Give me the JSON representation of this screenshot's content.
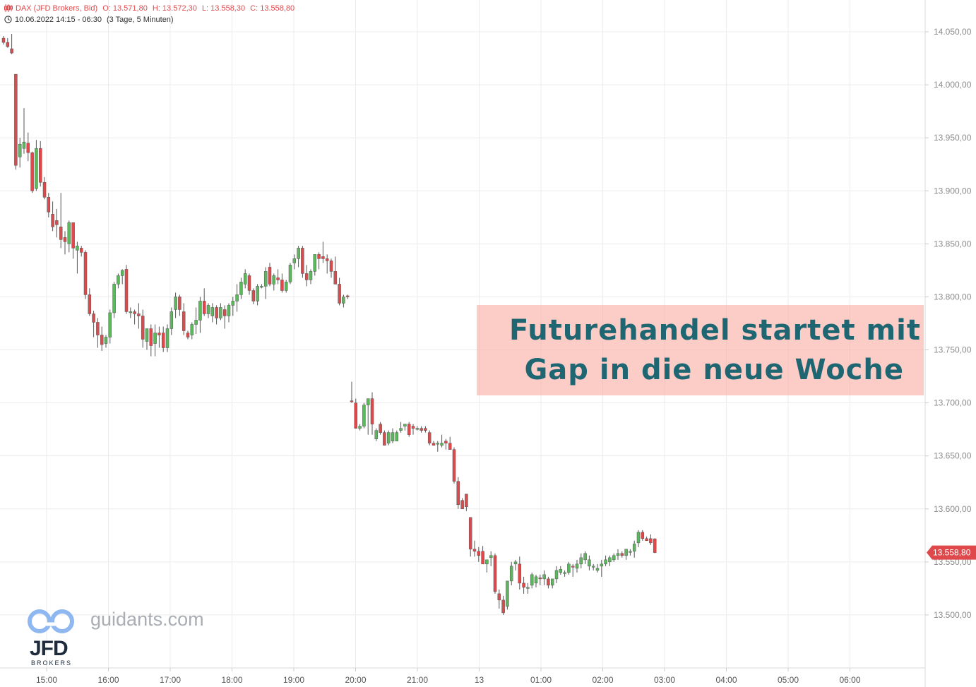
{
  "header": {
    "instrument": "DAX (JFD Brokers, Bid)",
    "open": "O: 13.571,80",
    "high": "H: 13.572,30",
    "low": "L: 13.558,30",
    "close": "C: 13.558,80",
    "period": "10.06.2022 14:15 - 06:30",
    "interval": "(3 Tage, 5 Minuten)"
  },
  "banner": {
    "line1": "Futurehandel startet mit",
    "line2": "Gap in die neue Woche"
  },
  "watermark": {
    "site": "guidants.com",
    "brand": "JFD",
    "brand_sub": "BROKERS"
  },
  "colors": {
    "up": "#5cb85c",
    "down": "#e0494b",
    "grid": "#ececec",
    "banner_text": "#1f6673",
    "last_price_tag": "#e0494b"
  },
  "chart_data": {
    "type": "candlestick",
    "title": "",
    "ylim": [
      13450,
      14080
    ],
    "y_ticks": [
      14050,
      14000,
      13950,
      13900,
      13850,
      13800,
      13750,
      13700,
      13650,
      13600,
      13550,
      13500
    ],
    "y_tick_labels": [
      "14.050,00",
      "14.000,00",
      "13.950,00",
      "13.900,00",
      "13.850,00",
      "13.800,00",
      "13.750,00",
      "13.700,00",
      "13.650,00",
      "13.600,00",
      "13.550,00",
      "13.500,00"
    ],
    "x_ticks": [
      "15:00",
      "16:00",
      "17:00",
      "18:00",
      "19:00",
      "20:00",
      "21:00",
      "13",
      "01:00",
      "02:00",
      "03:00",
      "04:00",
      "05:00",
      "06:00"
    ],
    "last_price": 13558.8,
    "last_price_label": "13.558,80",
    "grid": true,
    "series": [
      {
        "ohlc": [
          [
            14044,
            14046,
            14038,
            14040
          ],
          [
            14040,
            14044,
            14035,
            14036
          ],
          [
            14034,
            14048,
            14029,
            14030
          ],
          [
            14010,
            14010,
            13920,
            13924
          ],
          [
            13932,
            13950,
            13922,
            13944
          ],
          [
            13940,
            13978,
            13935,
            13946
          ],
          [
            13945,
            13955,
            13928,
            13936
          ],
          [
            13936,
            13937,
            13898,
            13900
          ],
          [
            13902,
            13948,
            13900,
            13940
          ],
          [
            13940,
            13947,
            13904,
            13908
          ],
          [
            13908,
            13913,
            13892,
            13894
          ],
          [
            13894,
            13898,
            13875,
            13880
          ],
          [
            13878,
            13890,
            13862,
            13866
          ],
          [
            13872,
            13883,
            13856,
            13868
          ],
          [
            13866,
            13898,
            13846,
            13854
          ],
          [
            13856,
            13862,
            13840,
            13852
          ],
          [
            13850,
            13872,
            13842,
            13870
          ],
          [
            13870,
            13870,
            13836,
            13846
          ],
          [
            13844,
            13852,
            13822,
            13848
          ],
          [
            13846,
            13848,
            13838,
            13842
          ],
          [
            13842,
            13844,
            13798,
            13802
          ],
          [
            13802,
            13808,
            13782,
            13784
          ],
          [
            13784,
            13787,
            13762,
            13776
          ],
          [
            13776,
            13780,
            13752,
            13764
          ],
          [
            13764,
            13772,
            13749,
            13755
          ],
          [
            13756,
            13764,
            13752,
            13762
          ],
          [
            13762,
            13788,
            13756,
            13785
          ],
          [
            13785,
            13814,
            13780,
            13812
          ],
          [
            13812,
            13822,
            13808,
            13820
          ],
          [
            13820,
            13826,
            13812,
            13825
          ],
          [
            13826,
            13830,
            13784,
            13786
          ],
          [
            13786,
            13790,
            13780,
            13786
          ],
          [
            13786,
            13788,
            13774,
            13784
          ],
          [
            13784,
            13794,
            13770,
            13782
          ],
          [
            13782,
            13788,
            13752,
            13760
          ],
          [
            13758,
            13770,
            13750,
            13770
          ],
          [
            13770,
            13774,
            13744,
            13754
          ],
          [
            13756,
            13774,
            13744,
            13766
          ],
          [
            13766,
            13772,
            13752,
            13764
          ],
          [
            13766,
            13772,
            13748,
            13752
          ],
          [
            13752,
            13774,
            13748,
            13770
          ],
          [
            13770,
            13790,
            13764,
            13786
          ],
          [
            13788,
            13804,
            13780,
            13800
          ],
          [
            13800,
            13802,
            13782,
            13788
          ],
          [
            13786,
            13794,
            13764,
            13768
          ],
          [
            13766,
            13768,
            13760,
            13762
          ],
          [
            13764,
            13776,
            13760,
            13774
          ],
          [
            13774,
            13790,
            13765,
            13778
          ],
          [
            13778,
            13800,
            13766,
            13796
          ],
          [
            13796,
            13808,
            13782,
            13784
          ],
          [
            13784,
            13794,
            13780,
            13792
          ],
          [
            13782,
            13794,
            13776,
            13790
          ],
          [
            13790,
            13792,
            13774,
            13780
          ],
          [
            13780,
            13794,
            13778,
            13790
          ],
          [
            13788,
            13792,
            13770,
            13782
          ],
          [
            13782,
            13794,
            13776,
            13792
          ],
          [
            13792,
            13800,
            13782,
            13796
          ],
          [
            13796,
            13812,
            13786,
            13802
          ],
          [
            13802,
            13818,
            13798,
            13814
          ],
          [
            13812,
            13826,
            13808,
            13822
          ],
          [
            13820,
            13822,
            13802,
            13806
          ],
          [
            13806,
            13808,
            13793,
            13796
          ],
          [
            13796,
            13812,
            13792,
            13810
          ],
          [
            13810,
            13812,
            13808,
            13810
          ],
          [
            13810,
            13828,
            13798,
            13824
          ],
          [
            13828,
            13832,
            13810,
            13812
          ],
          [
            13812,
            13822,
            13806,
            13820
          ],
          [
            13818,
            13826,
            13812,
            13816
          ],
          [
            13816,
            13822,
            13804,
            13806
          ],
          [
            13806,
            13816,
            13804,
            13814
          ],
          [
            13814,
            13832,
            13812,
            13830
          ],
          [
            13832,
            13840,
            13826,
            13836
          ],
          [
            13836,
            13848,
            13828,
            13846
          ],
          [
            13846,
            13848,
            13818,
            13822
          ],
          [
            13822,
            13830,
            13810,
            13816
          ],
          [
            13816,
            13826,
            13812,
            13824
          ],
          [
            13824,
            13840,
            13820,
            13840
          ],
          [
            13840,
            13842,
            13826,
            13836
          ],
          [
            13838,
            13852,
            13832,
            13836
          ],
          [
            13836,
            13840,
            13822,
            13834
          ],
          [
            13834,
            13836,
            13818,
            13824
          ],
          [
            13824,
            13838,
            13812,
            13812
          ],
          [
            13812,
            13818,
            13792,
            13794
          ],
          [
            13794,
            13802,
            13790,
            13800
          ],
          [
            13801,
            13802,
            13798,
            13800
          ],
          [
            13702,
            13720,
            13700,
            13701
          ],
          [
            13700,
            13704,
            13676,
            13676
          ],
          [
            13676,
            13680,
            13674,
            13678
          ],
          [
            13678,
            13700,
            13676,
            13698
          ],
          [
            13698,
            13704,
            13670,
            13704
          ],
          [
            13704,
            13710,
            13670,
            13680
          ],
          [
            13666,
            13676,
            13664,
            13674
          ],
          [
            13680,
            13682,
            13670,
            13672
          ],
          [
            13672,
            13674,
            13660,
            13660
          ],
          [
            13662,
            13674,
            13660,
            13672
          ],
          [
            13664,
            13676,
            13662,
            13672
          ],
          [
            13664,
            13674,
            13664,
            13672
          ],
          [
            13674,
            13682,
            13672,
            13676
          ],
          [
            13678,
            13680,
            13674,
            13680
          ],
          [
            13680,
            13682,
            13668,
            13670
          ],
          [
            13678,
            13680,
            13670,
            13676
          ],
          [
            13676,
            13678,
            13674,
            13676
          ],
          [
            13676,
            13678,
            13672,
            13674
          ],
          [
            13676,
            13678,
            13672,
            13674
          ],
          [
            13672,
            13674,
            13660,
            13662
          ],
          [
            13662,
            13664,
            13660,
            13660
          ],
          [
            13662,
            13664,
            13654,
            13662
          ],
          [
            13660,
            13670,
            13658,
            13662
          ],
          [
            13664,
            13666,
            13656,
            13662
          ],
          [
            13662,
            13668,
            13656,
            13656
          ],
          [
            13656,
            13658,
            13624,
            13626
          ],
          [
            13626,
            13630,
            13600,
            13604
          ],
          [
            13608,
            13610,
            13600,
            13600
          ],
          [
            13614,
            13614,
            13598,
            13602
          ],
          [
            13592,
            13592,
            13555,
            13562
          ],
          [
            13562,
            13570,
            13555,
            13560
          ],
          [
            13560,
            13564,
            13550,
            13556
          ],
          [
            13560,
            13565,
            13548,
            13548
          ],
          [
            13548,
            13552,
            13540,
            13552
          ],
          [
            13554,
            13560,
            13546,
            13556
          ],
          [
            13556,
            13558,
            13520,
            13522
          ],
          [
            13520,
            13524,
            13506,
            13514
          ],
          [
            13514,
            13518,
            13500,
            13502
          ],
          [
            13508,
            13532,
            13505,
            13532
          ],
          [
            13532,
            13550,
            13528,
            13546
          ],
          [
            13548,
            13552,
            13542,
            13550
          ],
          [
            13548,
            13555,
            13524,
            13530
          ],
          [
            13530,
            13536,
            13520,
            13526
          ],
          [
            13526,
            13530,
            13520,
            13526
          ],
          [
            13528,
            13540,
            13525,
            13538
          ],
          [
            13530,
            13538,
            13526,
            13536
          ],
          [
            13535,
            13538,
            13528,
            13534
          ],
          [
            13534,
            13542,
            13528,
            13538
          ],
          [
            13534,
            13536,
            13525,
            13528
          ],
          [
            13528,
            13530,
            13525,
            13534
          ],
          [
            13534,
            13546,
            13530,
            13542
          ],
          [
            13540,
            13546,
            13538,
            13543
          ],
          [
            13540,
            13542,
            13536,
            13540
          ],
          [
            13540,
            13550,
            13538,
            13548
          ],
          [
            13546,
            13548,
            13536,
            13545
          ],
          [
            13544,
            13552,
            13540,
            13548
          ],
          [
            13548,
            13558,
            13544,
            13554
          ],
          [
            13552,
            13560,
            13548,
            13558
          ],
          [
            13546,
            13556,
            13542,
            13552
          ],
          [
            13546,
            13548,
            13542,
            13546
          ],
          [
            13542,
            13548,
            13540,
            13544
          ],
          [
            13546,
            13552,
            13536,
            13548
          ],
          [
            13548,
            13556,
            13546,
            13552
          ],
          [
            13550,
            13556,
            13546,
            13554
          ],
          [
            13552,
            13558,
            13550,
            13556
          ],
          [
            13556,
            13562,
            13552,
            13558
          ],
          [
            13558,
            13560,
            13554,
            13556
          ],
          [
            13556,
            13562,
            13552,
            13562
          ],
          [
            13560,
            13562,
            13556,
            13560
          ],
          [
            13560,
            13570,
            13554,
            13567
          ],
          [
            13568,
            13580,
            13564,
            13578
          ],
          [
            13578,
            13580,
            13570,
            13572
          ],
          [
            13572,
            13574,
            13570,
            13570
          ],
          [
            13572,
            13576,
            13566,
            13568
          ],
          [
            13571.8,
            13572.3,
            13558.3,
            13558.8
          ]
        ]
      }
    ]
  }
}
